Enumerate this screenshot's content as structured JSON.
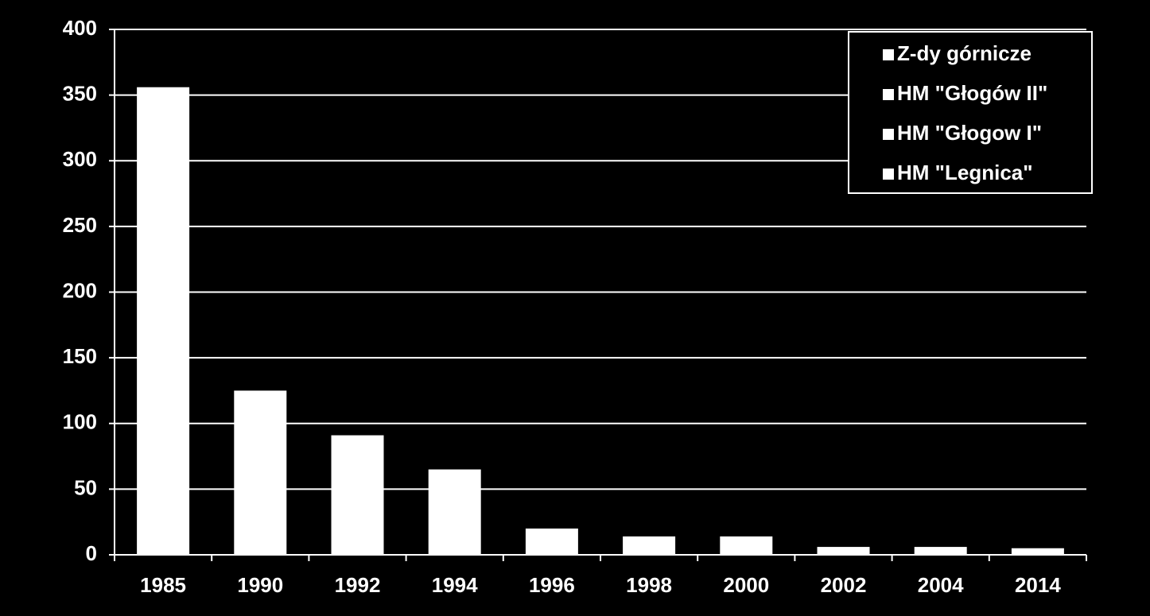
{
  "chart_data": {
    "type": "bar",
    "categories": [
      "1985",
      "1990",
      "1992",
      "1994",
      "1996",
      "1998",
      "2000",
      "2002",
      "2004",
      "2014"
    ],
    "values": [
      356,
      125,
      91,
      65,
      20,
      14,
      14,
      6,
      6,
      5
    ],
    "color": "#ffffff",
    "legend": [
      {
        "name": "Z-dy górnicze",
        "color": "#ffffff"
      },
      {
        "name": "HM \"Głogów II\"",
        "color": "#ffffff"
      },
      {
        "name": "HM \"Głogow I\"",
        "color": "#ffffff"
      },
      {
        "name": "HM \"Legnica\"",
        "color": "#ffffff"
      }
    ],
    "legend_position": "upper right",
    "ylim": [
      0,
      400
    ],
    "yticks": [
      0,
      50,
      100,
      150,
      200,
      250,
      300,
      350,
      400
    ],
    "grid": true
  }
}
